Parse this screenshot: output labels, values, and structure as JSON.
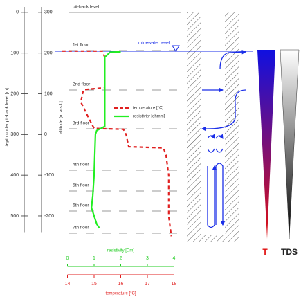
{
  "chart_data": {
    "type": "line",
    "y_label": "depth under pit-bank level [m]",
    "y2_label": "altitude [m a.s.l.]",
    "ylim": [
      -10,
      540
    ],
    "yticks": [
      0,
      100,
      200,
      300,
      400,
      500
    ],
    "y2lim": [
      310,
      -240
    ],
    "y2ticks": [
      300,
      200,
      100,
      0,
      -100,
      -200
    ],
    "x_axes": [
      {
        "label": "resistivity [Ωm]",
        "lim": [
          0,
          4
        ],
        "ticks": [
          0,
          1,
          2,
          3,
          4
        ],
        "color": "#22cc22"
      },
      {
        "label": "temperature [°C]",
        "lim": [
          14,
          18
        ],
        "ticks": [
          14,
          15,
          16,
          17,
          18
        ],
        "color": "#e02020"
      }
    ],
    "series": [
      {
        "name": "temperature [°C]",
        "color": "#e02020",
        "dashed": true,
        "x_axis": 1,
        "depth": [
          95,
          95,
          110,
          185,
          190,
          220,
          260,
          285,
          287,
          300,
          330,
          333,
          350,
          400,
          500,
          550
        ],
        "values": [
          13.8,
          15.3,
          15.4,
          15.4,
          14.6,
          14.5,
          14.8,
          15.0,
          16.1,
          16.2,
          16.3,
          17.6,
          17.7,
          17.8,
          17.8,
          17.9
        ]
      },
      {
        "name": "resistivity [ohmm]",
        "color": "#22ee22",
        "dashed": false,
        "x_axis": 0,
        "depth": [
          97,
          98,
          110,
          280,
          290,
          300,
          400,
          450,
          480,
          500,
          520,
          530
        ],
        "values": [
          2.0,
          1.6,
          1.4,
          1.4,
          1.1,
          1.05,
          1.0,
          0.95,
          0.9,
          1.0,
          1.1,
          1.2
        ]
      }
    ],
    "annotations": [
      "pit-bank level",
      "1st floor",
      "2nd floor",
      "3rd floor",
      "4th floor",
      "5th floor",
      "6th floor",
      "7th floor"
    ],
    "water_level_label": "minewater level"
  },
  "gradient_labels": [
    "T",
    "TDS"
  ]
}
